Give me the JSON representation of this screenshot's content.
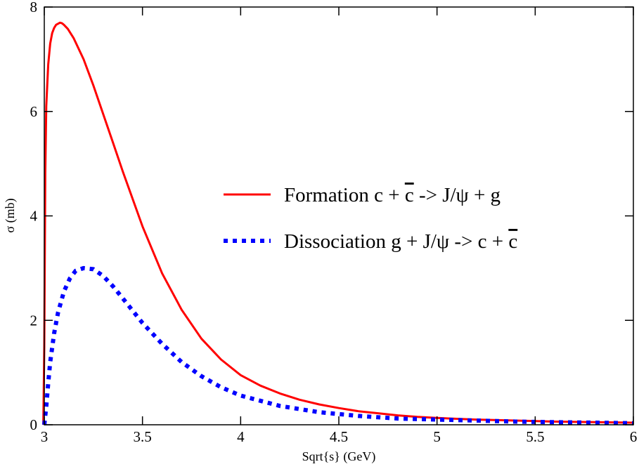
{
  "chart_data": {
    "type": "line",
    "title": "",
    "xlabel": "Sqrt{s}  (GeV)",
    "ylabel": "σ (mb)",
    "xlim": [
      3,
      6
    ],
    "ylim": [
      0,
      8
    ],
    "x_ticks": [
      3,
      3.5,
      4,
      4.5,
      5,
      5.5,
      6
    ],
    "x_tick_labels": [
      "3",
      "3.5",
      "4",
      "4.5",
      "5",
      "5.5",
      "6"
    ],
    "y_ticks": [
      0,
      2,
      4,
      6,
      8
    ],
    "y_tick_labels": [
      "0",
      "2",
      "4",
      "6",
      "8"
    ],
    "grid": false,
    "legend_position": "center-right",
    "series": [
      {
        "name": "Formation",
        "legend_parts": [
          "Formation c + ",
          "c",
          " -> J/ψ + g"
        ],
        "color": "#ff0000",
        "style": "solid",
        "x": [
          2.995,
          3.0,
          3.005,
          3.01,
          3.02,
          3.03,
          3.04,
          3.05,
          3.06,
          3.07,
          3.08,
          3.09,
          3.1,
          3.12,
          3.15,
          3.2,
          3.25,
          3.3,
          3.35,
          3.4,
          3.5,
          3.6,
          3.7,
          3.8,
          3.9,
          4.0,
          4.1,
          4.2,
          4.3,
          4.4,
          4.5,
          4.6,
          4.7,
          4.8,
          4.9,
          5.0,
          5.2,
          5.4,
          5.6,
          5.8,
          6.0
        ],
        "values": [
          0.0,
          1.5,
          4.8,
          6.1,
          6.9,
          7.3,
          7.5,
          7.6,
          7.66,
          7.68,
          7.7,
          7.69,
          7.66,
          7.58,
          7.4,
          7.0,
          6.5,
          5.95,
          5.4,
          4.85,
          3.8,
          2.9,
          2.2,
          1.65,
          1.25,
          0.95,
          0.75,
          0.6,
          0.48,
          0.39,
          0.32,
          0.26,
          0.22,
          0.18,
          0.15,
          0.13,
          0.1,
          0.08,
          0.06,
          0.05,
          0.04
        ]
      },
      {
        "name": "Dissociation",
        "legend_parts": [
          "Dissociation  g + J/ψ -> c + ",
          "c",
          ""
        ],
        "color": "#0000ff",
        "style": "dotted",
        "x": [
          3.0,
          3.01,
          3.02,
          3.03,
          3.05,
          3.07,
          3.1,
          3.13,
          3.16,
          3.2,
          3.25,
          3.3,
          3.35,
          3.4,
          3.5,
          3.6,
          3.7,
          3.8,
          3.9,
          4.0,
          4.2,
          4.4,
          4.6,
          4.8,
          5.0,
          5.2,
          5.4,
          5.6,
          5.8,
          6.0
        ],
        "values": [
          0.0,
          0.35,
          0.8,
          1.2,
          1.75,
          2.15,
          2.55,
          2.8,
          2.95,
          3.0,
          2.98,
          2.85,
          2.65,
          2.42,
          1.95,
          1.55,
          1.2,
          0.93,
          0.72,
          0.56,
          0.36,
          0.24,
          0.17,
          0.12,
          0.1,
          0.08,
          0.06,
          0.05,
          0.04,
          0.03
        ]
      }
    ]
  }
}
